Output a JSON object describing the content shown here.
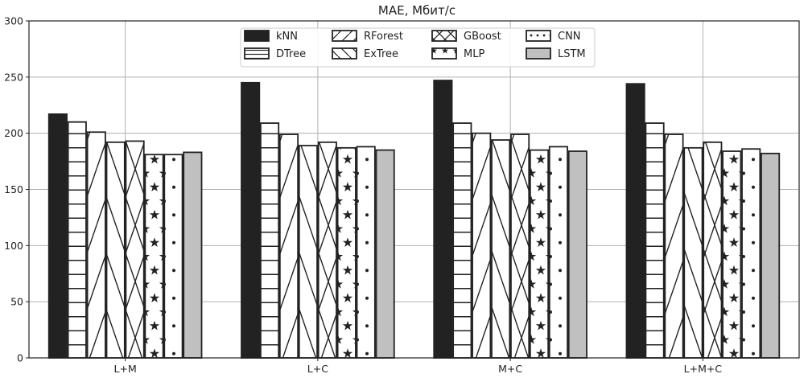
{
  "chart_data": {
    "type": "bar",
    "title": "MAE, Мбит/с",
    "xlabel": "",
    "ylabel": "",
    "ylim": [
      0,
      300
    ],
    "yticks": [
      0,
      50,
      100,
      150,
      200,
      250,
      300
    ],
    "grid": true,
    "legend_position": "top-center",
    "categories": [
      "L+M",
      "L+C",
      "M+C",
      "L+M+C"
    ],
    "series": [
      {
        "name": "kNN",
        "pattern": "solid-black",
        "values": [
          217,
          245,
          247,
          244
        ]
      },
      {
        "name": "DTree",
        "pattern": "horizontal-lines",
        "values": [
          210,
          209,
          209,
          209
        ]
      },
      {
        "name": "RForest",
        "pattern": "diagonal-slash",
        "values": [
          201,
          199,
          200,
          199
        ]
      },
      {
        "name": "ExTree",
        "pattern": "backslash",
        "values": [
          192,
          189,
          194,
          187
        ]
      },
      {
        "name": "GBoost",
        "pattern": "cross-hatch",
        "values": [
          193,
          192,
          199,
          192
        ]
      },
      {
        "name": "MLP",
        "pattern": "stars",
        "values": [
          181,
          187,
          185,
          184
        ]
      },
      {
        "name": "CNN",
        "pattern": "dots",
        "values": [
          181,
          188,
          188,
          186
        ]
      },
      {
        "name": "LSTM",
        "pattern": "solid-grey",
        "values": [
          183,
          185,
          184,
          182
        ]
      }
    ]
  }
}
